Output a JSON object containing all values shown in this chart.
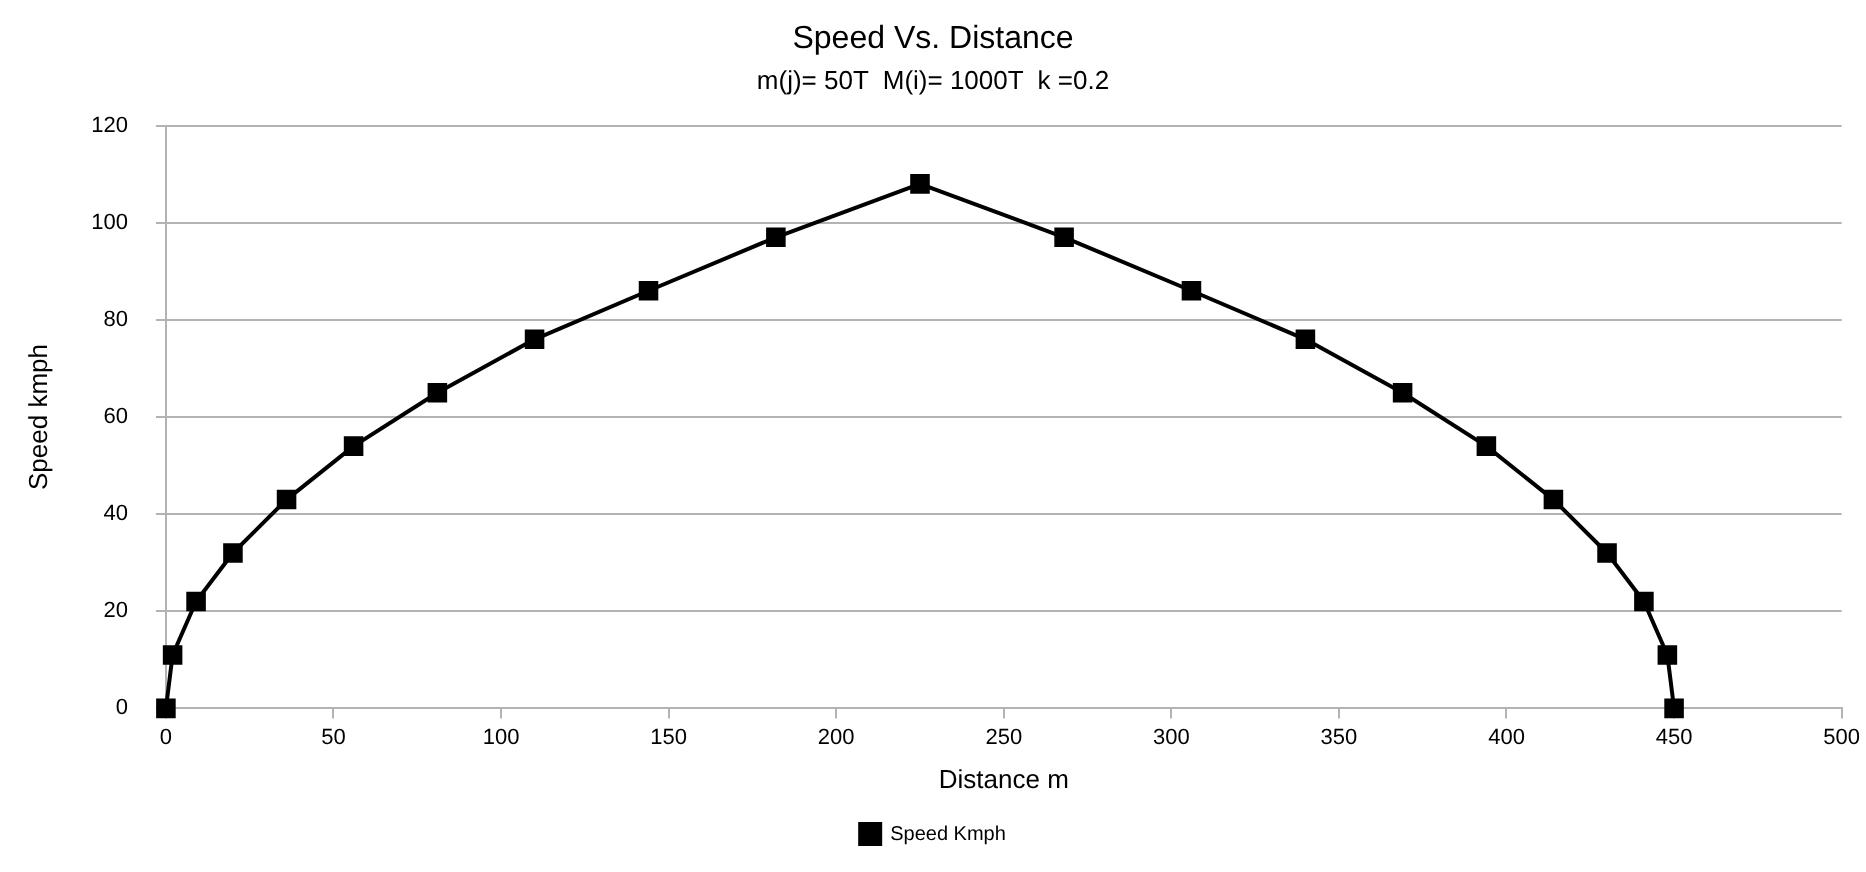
{
  "chart_data": {
    "type": "line",
    "title": "Speed Vs. Distance",
    "subtitle": "m(j)= 50T  M(i)= 1000T  k =0.2",
    "xlabel": "Distance m",
    "ylabel": "Speed kmph",
    "x": [
      0,
      2,
      9,
      20,
      36,
      56,
      81,
      110,
      144,
      182,
      225,
      268,
      306,
      340,
      369,
      394,
      414,
      430,
      441,
      448,
      450
    ],
    "series": [
      {
        "name": "Speed Kmph",
        "color": "#000000",
        "values": [
          0,
          11,
          22,
          32,
          43,
          54,
          65,
          76,
          86,
          97,
          108,
          97,
          86,
          76,
          65,
          54,
          43,
          32,
          22,
          11,
          0
        ]
      }
    ],
    "xlim": [
      0,
      500
    ],
    "xticks": [
      0,
      50,
      100,
      150,
      200,
      250,
      300,
      350,
      400,
      450,
      500
    ],
    "ylim": [
      0,
      120
    ],
    "yticks": [
      0,
      20,
      40,
      60,
      80,
      100,
      120
    ],
    "grid": "y",
    "legend": "bottom",
    "marker": "square",
    "line_style": "solid"
  }
}
